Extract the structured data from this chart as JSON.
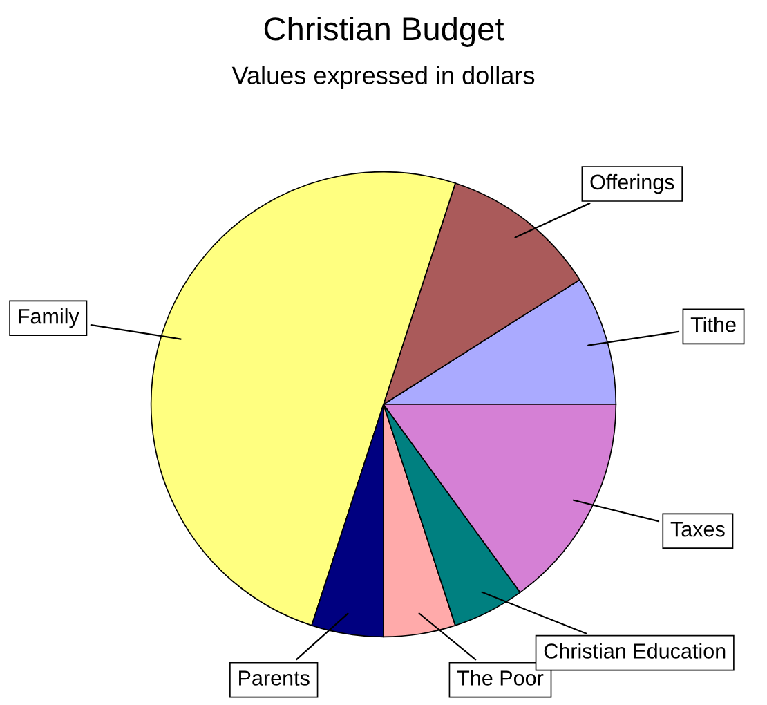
{
  "chart_data": {
    "type": "pie",
    "title": "Christian Budget",
    "subtitle": "Values expressed in dollars",
    "categories": [
      "Tithe",
      "Offerings",
      "Family",
      "Parents",
      "The Poor",
      "Christian Education",
      "Taxes"
    ],
    "values": [
      9,
      11,
      50,
      5,
      5,
      5,
      15
    ],
    "colors": [
      "#aaaaff",
      "#aa5a5a",
      "#ffff80",
      "#000080",
      "#ffaaaa",
      "#008080",
      "#d580d5"
    ],
    "legend": false
  }
}
